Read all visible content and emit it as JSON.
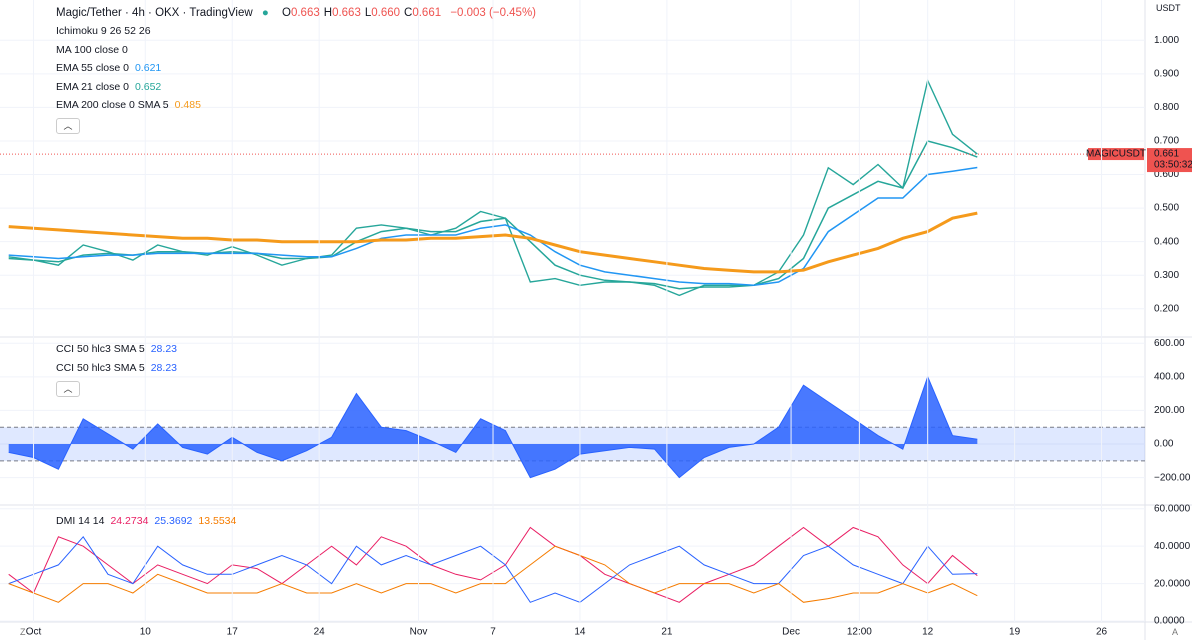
{
  "header": {
    "title": "Magic/Tether · 4h · OKX · TradingView",
    "ohlc": [
      {
        "k": "O",
        "v": "0.663"
      },
      {
        "k": "H",
        "v": "0.663"
      },
      {
        "k": "L",
        "v": "0.660"
      },
      {
        "k": "C",
        "v": "0.661"
      }
    ],
    "change": "−0.003 (−0.45%)",
    "currency": "USDT",
    "corner_left": "Z",
    "corner_right": "A",
    "price_tag": {
      "symbol": "MAGICUSDT",
      "price": "0.661",
      "countdown": "03:50:32"
    }
  },
  "legend": [
    {
      "name": "Ichimoku 9 26 52 26"
    },
    {
      "name": "MA 100 close 0"
    },
    {
      "name": "EMA 55 close 0",
      "value": "0.621",
      "color": "#2196f3"
    },
    {
      "name": "EMA 21 close 0",
      "value": "0.652",
      "color": "#26a69a"
    },
    {
      "name": "EMA 200 close 0 SMA 5",
      "value": "0.485",
      "color": "#f59a1b"
    }
  ],
  "cci_legend": [
    {
      "name": "CCI 50 hlc3 SMA 5",
      "value": "28.23"
    },
    {
      "name": "CCI 50 hlc3 SMA 5",
      "value": "28.23"
    }
  ],
  "dmi_legend": {
    "name": "DMI 14 14",
    "values": [
      {
        "v": "24.2734",
        "color": "#e91e63"
      },
      {
        "v": "25.3692",
        "color": "#2962ff"
      },
      {
        "v": "13.5534",
        "color": "#f57c00"
      }
    ]
  },
  "chart_data": [
    {
      "type": "line",
      "xlim": [
        -2.7,
        89.5
      ],
      "ylim": [
        0.116,
        1.12
      ],
      "yticks": [
        {
          "value": 0.2,
          "label": "0.200"
        },
        {
          "value": 0.3,
          "label": "0.300"
        },
        {
          "value": 0.4,
          "label": "0.400"
        },
        {
          "value": 0.5,
          "label": "0.500"
        },
        {
          "value": 0.6,
          "label": "0.600"
        },
        {
          "value": 0.7,
          "label": "0.700"
        },
        {
          "value": 0.8,
          "label": "0.800"
        },
        {
          "value": 0.9,
          "label": "0.900"
        },
        {
          "value": 1,
          "label": "1.000"
        }
      ],
      "x": [
        -2,
        0,
        2,
        4,
        6,
        8,
        10,
        12,
        14,
        16,
        18,
        20,
        22,
        24,
        26,
        28,
        30,
        32,
        34,
        36,
        38,
        40,
        42,
        44,
        46,
        48,
        50,
        52,
        54,
        56,
        58,
        60,
        62,
        64,
        66,
        68,
        70,
        72,
        74,
        76
      ],
      "series": [
        {
          "name": "MAGICUSDT",
          "color": "#26a69a",
          "width": 1.4,
          "values": [
            0.355,
            0.345,
            0.33,
            0.39,
            0.37,
            0.345,
            0.39,
            0.37,
            0.36,
            0.385,
            0.36,
            0.33,
            0.35,
            0.36,
            0.44,
            0.45,
            0.44,
            0.42,
            0.44,
            0.49,
            0.47,
            0.28,
            0.29,
            0.27,
            0.28,
            0.28,
            0.27,
            0.24,
            0.27,
            0.27,
            0.27,
            0.31,
            0.42,
            0.62,
            0.57,
            0.63,
            0.56,
            0.88,
            0.72,
            0.661
          ]
        },
        {
          "name": "EMA 21",
          "color": "#26a69a",
          "width": 1.5,
          "values": [
            0.35,
            0.345,
            0.34,
            0.36,
            0.365,
            0.36,
            0.37,
            0.37,
            0.365,
            0.37,
            0.365,
            0.35,
            0.35,
            0.355,
            0.4,
            0.43,
            0.44,
            0.43,
            0.43,
            0.46,
            0.47,
            0.4,
            0.33,
            0.3,
            0.285,
            0.28,
            0.275,
            0.26,
            0.265,
            0.265,
            0.27,
            0.29,
            0.35,
            0.5,
            0.54,
            0.58,
            0.56,
            0.7,
            0.68,
            0.652
          ]
        },
        {
          "name": "EMA 55",
          "color": "#2196f3",
          "width": 1.5,
          "values": [
            0.36,
            0.355,
            0.35,
            0.355,
            0.36,
            0.36,
            0.365,
            0.365,
            0.365,
            0.365,
            0.365,
            0.36,
            0.355,
            0.355,
            0.38,
            0.41,
            0.42,
            0.42,
            0.42,
            0.44,
            0.45,
            0.42,
            0.37,
            0.33,
            0.31,
            0.3,
            0.29,
            0.28,
            0.275,
            0.275,
            0.27,
            0.28,
            0.32,
            0.43,
            0.48,
            0.53,
            0.53,
            0.6,
            0.61,
            0.621
          ]
        },
        {
          "name": "EMA 200",
          "color": "#f59a1b",
          "width": 3,
          "values": [
            0.445,
            0.44,
            0.435,
            0.43,
            0.425,
            0.42,
            0.415,
            0.41,
            0.41,
            0.405,
            0.405,
            0.4,
            0.4,
            0.4,
            0.4,
            0.405,
            0.405,
            0.41,
            0.41,
            0.415,
            0.42,
            0.41,
            0.39,
            0.37,
            0.36,
            0.35,
            0.34,
            0.33,
            0.32,
            0.315,
            0.31,
            0.31,
            0.315,
            0.34,
            0.36,
            0.38,
            0.41,
            0.43,
            0.47,
            0.485
          ]
        }
      ]
    },
    {
      "type": "area",
      "xlim": [
        -2.7,
        89.5
      ],
      "ylim": [
        -363,
        637
      ],
      "band": [
        -100,
        100
      ],
      "yticks": [
        {
          "value": -200,
          "label": "−200.00"
        },
        {
          "value": 0,
          "label": "0.00"
        },
        {
          "value": 200,
          "label": "200.00"
        },
        {
          "value": 400,
          "label": "400.00"
        },
        {
          "value": 600,
          "label": "600.00"
        }
      ],
      "x": [
        -2,
        0,
        2,
        4,
        6,
        8,
        10,
        12,
        14,
        16,
        18,
        20,
        22,
        24,
        26,
        28,
        30,
        32,
        34,
        36,
        38,
        40,
        42,
        44,
        46,
        48,
        50,
        52,
        54,
        56,
        58,
        60,
        62,
        64,
        66,
        68,
        70,
        72,
        74,
        76
      ],
      "series": [
        {
          "name": "CCI",
          "color": "#2962ff",
          "values": [
            -50,
            -80,
            -150,
            150,
            60,
            -30,
            120,
            -20,
            -60,
            40,
            -50,
            -100,
            -40,
            40,
            300,
            100,
            80,
            20,
            -50,
            150,
            80,
            -200,
            -150,
            -60,
            -40,
            -20,
            -30,
            -200,
            -80,
            -20,
            0,
            100,
            350,
            250,
            150,
            50,
            -30,
            400,
            50,
            28
          ]
        }
      ]
    },
    {
      "type": "line",
      "xlim": [
        -2.7,
        89.5
      ],
      "ylim": [
        -0.5,
        62
      ],
      "yticks": [
        {
          "value": 0,
          "label": "0.0000"
        },
        {
          "value": 20,
          "label": "20.0000"
        },
        {
          "value": 40,
          "label": "40.0000"
        },
        {
          "value": 60,
          "label": "60.0000"
        }
      ],
      "xticks": [
        {
          "value": 0,
          "label": "Oct"
        },
        {
          "value": 9,
          "label": "10"
        },
        {
          "value": 16,
          "label": "17"
        },
        {
          "value": 23,
          "label": "24"
        },
        {
          "value": 31,
          "label": "Nov"
        },
        {
          "value": 37,
          "label": "7"
        },
        {
          "value": 44,
          "label": "14"
        },
        {
          "value": 51,
          "label": "21"
        },
        {
          "value": 61,
          "label": "Dec"
        },
        {
          "value": 66.5,
          "label": "12:00"
        },
        {
          "value": 72,
          "label": "12"
        },
        {
          "value": 79,
          "label": "19"
        },
        {
          "value": 86,
          "label": "26"
        }
      ],
      "x": [
        -2,
        0,
        2,
        4,
        6,
        8,
        10,
        12,
        14,
        16,
        18,
        20,
        22,
        24,
        26,
        28,
        30,
        32,
        34,
        36,
        38,
        40,
        42,
        44,
        46,
        48,
        50,
        52,
        54,
        56,
        58,
        60,
        62,
        64,
        66,
        68,
        70,
        72,
        74,
        76
      ],
      "series": [
        {
          "name": "+DI",
          "color": "#e91e63",
          "width": 1,
          "values": [
            25,
            15,
            45,
            40,
            30,
            20,
            30,
            25,
            20,
            30,
            28,
            20,
            30,
            40,
            30,
            45,
            40,
            30,
            25,
            22,
            30,
            50,
            40,
            35,
            25,
            20,
            15,
            10,
            20,
            25,
            30,
            40,
            50,
            40,
            50,
            45,
            30,
            20,
            35,
            24.27
          ]
        },
        {
          "name": "-DI",
          "color": "#2962ff",
          "width": 1,
          "values": [
            20,
            25,
            30,
            45,
            25,
            20,
            40,
            30,
            25,
            25,
            30,
            35,
            30,
            20,
            40,
            30,
            35,
            30,
            35,
            40,
            30,
            10,
            15,
            10,
            20,
            30,
            35,
            40,
            30,
            25,
            20,
            20,
            35,
            40,
            30,
            25,
            20,
            40,
            25,
            25.37
          ]
        },
        {
          "name": "ADX",
          "color": "#f57c00",
          "width": 1,
          "values": [
            20,
            15,
            10,
            20,
            20,
            15,
            25,
            20,
            15,
            15,
            15,
            20,
            15,
            15,
            20,
            15,
            20,
            20,
            15,
            20,
            20,
            30,
            40,
            35,
            30,
            20,
            15,
            20,
            20,
            20,
            15,
            20,
            10,
            12,
            15,
            15,
            20,
            15,
            20,
            13.55
          ]
        }
      ]
    }
  ]
}
